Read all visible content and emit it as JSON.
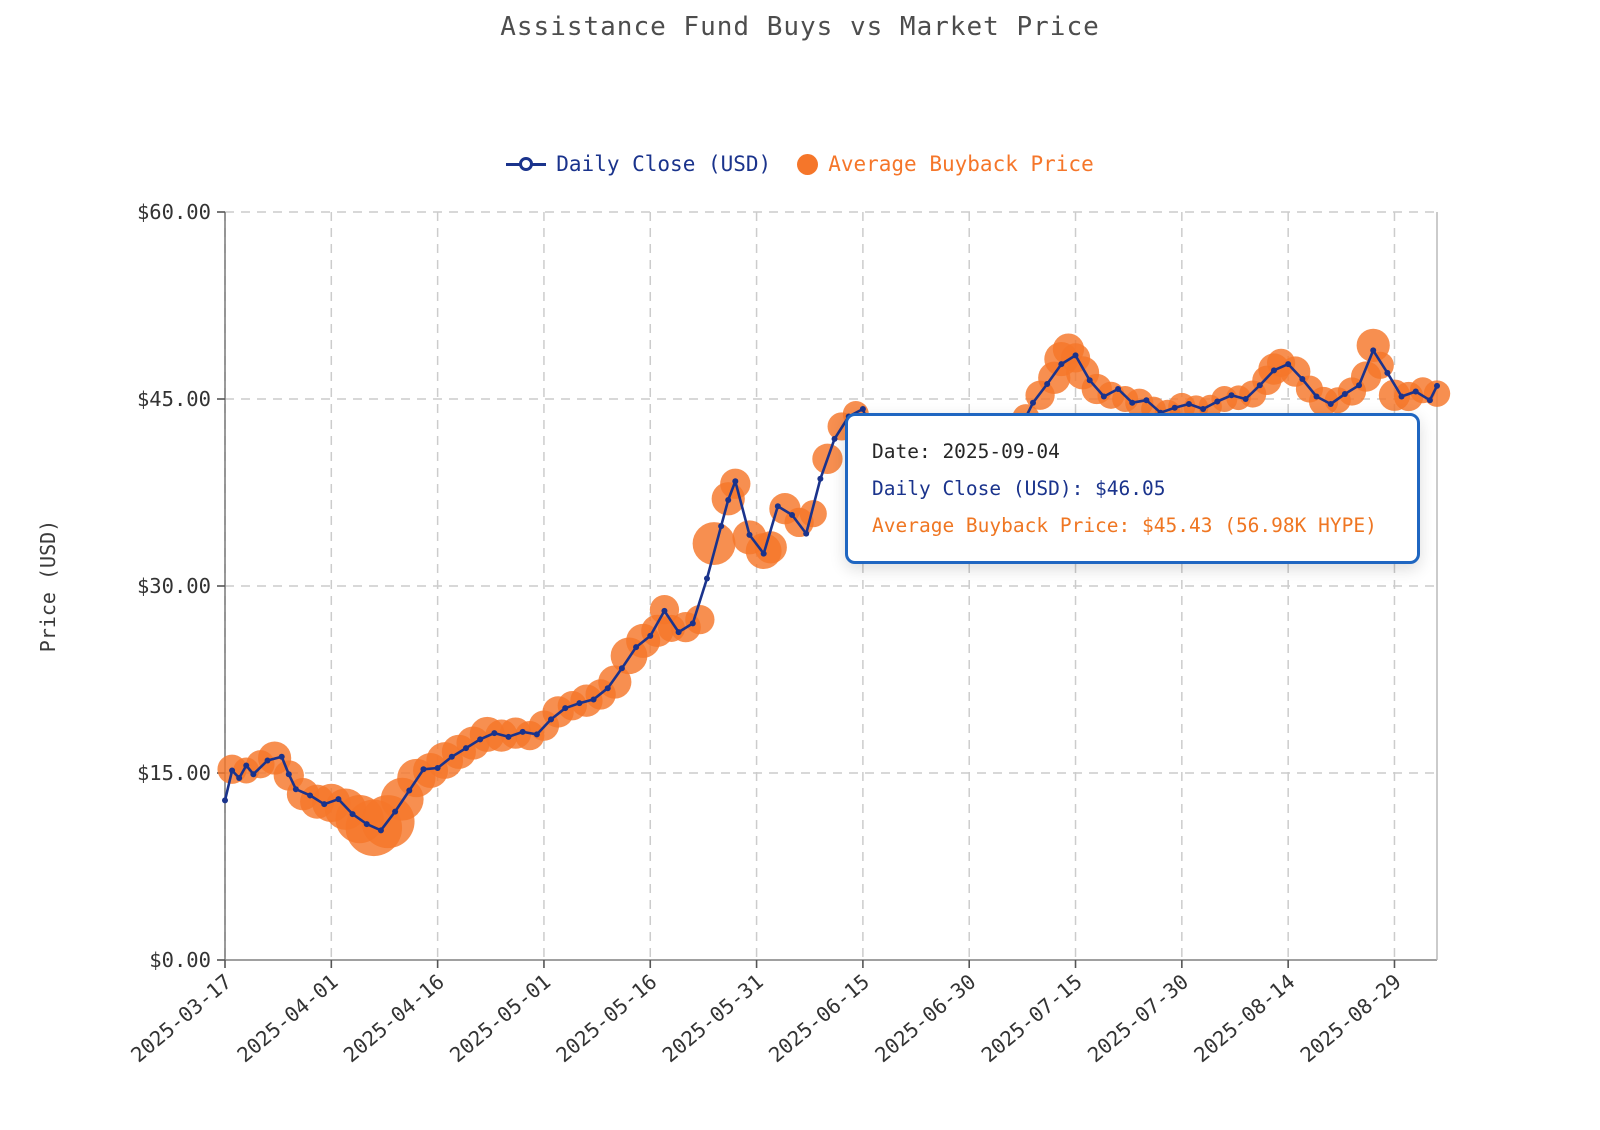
{
  "tooltip": {
    "lines": {
      "date": "Date: 2025-09-04",
      "daily_close": "Daily Close (USD): $46.05",
      "avg_buyback": "Average Buyback Price: $45.43 (56.98K HYPE)"
    },
    "border_color": "#1f66c1"
  },
  "colors": {
    "line": "#1a338c",
    "bubble": "#f5762a",
    "grid": "#cccccc",
    "axis": "#808080",
    "tick_text": "#333333",
    "title_text": "#4d4d4d",
    "background": "#ffffff"
  },
  "chart_data": {
    "type": "line",
    "title": "Assistance Fund Buys vs Market Price",
    "xlabel": "",
    "ylabel": "Price (USD)",
    "ylim": [
      0,
      60
    ],
    "grid": true,
    "legend_position": "top-center",
    "y_ticks": [
      {
        "v": 0,
        "label": "$0.00"
      },
      {
        "v": 15,
        "label": "$15.00"
      },
      {
        "v": 30,
        "label": "$30.00"
      },
      {
        "v": 45,
        "label": "$45.00"
      },
      {
        "v": 60,
        "label": "$60.00"
      }
    ],
    "x_ticks": [
      "2025-03-17",
      "2025-04-01",
      "2025-04-16",
      "2025-05-01",
      "2025-05-16",
      "2025-05-31",
      "2025-06-15",
      "2025-06-30",
      "2025-07-15",
      "2025-07-30",
      "2025-08-14",
      "2025-08-29"
    ],
    "x_domain": [
      "2025-03-17",
      "2025-09-04"
    ],
    "legend": [
      {
        "label": "Daily Close (USD)",
        "color": "#1a338c",
        "marker": "line-dot"
      },
      {
        "label": "Average Buyback Price",
        "color": "#f5762a",
        "marker": "bubble"
      }
    ],
    "series": [
      {
        "name": "Daily Close (USD)",
        "type": "line",
        "color": "#1a338c",
        "points": [
          [
            "2025-03-17",
            12.8
          ],
          [
            "2025-03-18",
            15.2
          ],
          [
            "2025-03-19",
            14.6
          ],
          [
            "2025-03-20",
            15.6
          ],
          [
            "2025-03-21",
            14.9
          ],
          [
            "2025-03-23",
            16.0
          ],
          [
            "2025-03-25",
            16.3
          ],
          [
            "2025-03-26",
            14.9
          ],
          [
            "2025-03-27",
            13.7
          ],
          [
            "2025-03-29",
            13.2
          ],
          [
            "2025-03-31",
            12.5
          ],
          [
            "2025-04-02",
            12.9
          ],
          [
            "2025-04-04",
            11.7
          ],
          [
            "2025-04-06",
            10.9
          ],
          [
            "2025-04-08",
            10.4
          ],
          [
            "2025-04-10",
            11.9
          ],
          [
            "2025-04-12",
            13.6
          ],
          [
            "2025-04-14",
            15.3
          ],
          [
            "2025-04-16",
            15.4
          ],
          [
            "2025-04-18",
            16.3
          ],
          [
            "2025-04-20",
            17.0
          ],
          [
            "2025-04-22",
            17.7
          ],
          [
            "2025-04-24",
            18.2
          ],
          [
            "2025-04-26",
            17.9
          ],
          [
            "2025-04-28",
            18.3
          ],
          [
            "2025-04-30",
            18.1
          ],
          [
            "2025-05-02",
            19.3
          ],
          [
            "2025-05-04",
            20.2
          ],
          [
            "2025-05-06",
            20.6
          ],
          [
            "2025-05-08",
            20.9
          ],
          [
            "2025-05-10",
            21.8
          ],
          [
            "2025-05-12",
            23.4
          ],
          [
            "2025-05-14",
            25.1
          ],
          [
            "2025-05-16",
            26.0
          ],
          [
            "2025-05-18",
            28.0
          ],
          [
            "2025-05-20",
            26.3
          ],
          [
            "2025-05-22",
            27.0
          ],
          [
            "2025-05-24",
            30.6
          ],
          [
            "2025-05-26",
            34.8
          ],
          [
            "2025-05-27",
            36.9
          ],
          [
            "2025-05-28",
            38.4
          ],
          [
            "2025-05-30",
            34.1
          ],
          [
            "2025-06-01",
            32.6
          ],
          [
            "2025-06-03",
            36.4
          ],
          [
            "2025-06-05",
            35.7
          ],
          [
            "2025-06-07",
            34.2
          ],
          [
            "2025-06-09",
            38.6
          ],
          [
            "2025-06-11",
            41.8
          ],
          [
            "2025-06-13",
            43.6
          ],
          [
            "2025-06-15",
            44.2
          ],
          [
            "2025-06-17",
            40.9
          ],
          [
            "2025-06-19",
            36.4
          ],
          [
            "2025-06-21",
            33.5
          ],
          [
            "2025-06-23",
            34.8
          ],
          [
            "2025-06-25",
            36.2
          ],
          [
            "2025-06-27",
            37.6
          ],
          [
            "2025-06-29",
            38.8
          ],
          [
            "2025-07-01",
            39.4
          ],
          [
            "2025-07-03",
            38.5
          ],
          [
            "2025-07-05",
            40.3
          ],
          [
            "2025-07-07",
            42.4
          ],
          [
            "2025-07-09",
            44.7
          ],
          [
            "2025-07-11",
            46.2
          ],
          [
            "2025-07-13",
            47.8
          ],
          [
            "2025-07-15",
            48.5
          ],
          [
            "2025-07-17",
            46.5
          ],
          [
            "2025-07-19",
            45.2
          ],
          [
            "2025-07-21",
            45.8
          ],
          [
            "2025-07-23",
            44.7
          ],
          [
            "2025-07-25",
            44.9
          ],
          [
            "2025-07-27",
            43.9
          ],
          [
            "2025-07-29",
            44.3
          ],
          [
            "2025-07-31",
            44.6
          ],
          [
            "2025-08-02",
            44.2
          ],
          [
            "2025-08-04",
            44.8
          ],
          [
            "2025-08-06",
            45.3
          ],
          [
            "2025-08-08",
            45.0
          ],
          [
            "2025-08-10",
            46.1
          ],
          [
            "2025-08-12",
            47.3
          ],
          [
            "2025-08-14",
            47.8
          ],
          [
            "2025-08-16",
            46.6
          ],
          [
            "2025-08-18",
            45.2
          ],
          [
            "2025-08-20",
            44.6
          ],
          [
            "2025-08-22",
            45.4
          ],
          [
            "2025-08-24",
            46.1
          ],
          [
            "2025-08-26",
            48.9
          ],
          [
            "2025-08-28",
            47.1
          ],
          [
            "2025-08-30",
            45.2
          ],
          [
            "2025-09-01",
            45.6
          ],
          [
            "2025-09-03",
            44.9
          ],
          [
            "2025-09-04",
            46.05
          ]
        ]
      },
      {
        "name": "Average Buyback Price",
        "type": "bubble",
        "color": "#f5762a",
        "size_note": "third value = thousands of HYPE bought; bubble radius proportional to sqrt(size)",
        "points": [
          [
            "2025-03-18",
            15.3,
            70
          ],
          [
            "2025-03-20",
            15.2,
            55
          ],
          [
            "2025-03-22",
            15.7,
            65
          ],
          [
            "2025-03-24",
            16.2,
            90
          ],
          [
            "2025-03-26",
            14.8,
            75
          ],
          [
            "2025-03-28",
            13.3,
            85
          ],
          [
            "2025-03-30",
            12.7,
            95
          ],
          [
            "2025-04-01",
            12.6,
            120
          ],
          [
            "2025-04-03",
            12.1,
            140
          ],
          [
            "2025-04-05",
            11.3,
            190
          ],
          [
            "2025-04-07",
            10.6,
            260
          ],
          [
            "2025-04-09",
            11.1,
            230
          ],
          [
            "2025-04-11",
            12.9,
            150
          ],
          [
            "2025-04-13",
            14.6,
            120
          ],
          [
            "2025-04-15",
            15.2,
            100
          ],
          [
            "2025-04-17",
            16.0,
            110
          ],
          [
            "2025-04-19",
            16.7,
            95
          ],
          [
            "2025-04-21",
            17.4,
            90
          ],
          [
            "2025-04-23",
            18.1,
            100
          ],
          [
            "2025-04-25",
            18.0,
            85
          ],
          [
            "2025-04-27",
            18.2,
            80
          ],
          [
            "2025-04-29",
            18.0,
            70
          ],
          [
            "2025-05-01",
            18.8,
            75
          ],
          [
            "2025-05-03",
            19.9,
            80
          ],
          [
            "2025-05-05",
            20.4,
            70
          ],
          [
            "2025-05-07",
            20.8,
            85
          ],
          [
            "2025-05-09",
            21.3,
            75
          ],
          [
            "2025-05-11",
            22.3,
            90
          ],
          [
            "2025-05-13",
            24.4,
            110
          ],
          [
            "2025-05-15",
            25.6,
            95
          ],
          [
            "2025-05-17",
            26.4,
            85
          ],
          [
            "2025-05-18",
            28.1,
            70
          ],
          [
            "2025-05-19",
            26.6,
            60
          ],
          [
            "2025-05-21",
            26.7,
            75
          ],
          [
            "2025-05-23",
            27.3,
            70
          ],
          [
            "2025-05-25",
            33.4,
            150
          ],
          [
            "2025-05-27",
            37.0,
            90
          ],
          [
            "2025-05-28",
            38.2,
            75
          ],
          [
            "2025-05-30",
            33.9,
            95
          ],
          [
            "2025-06-01",
            32.8,
            105
          ],
          [
            "2025-06-02",
            33.1,
            85
          ],
          [
            "2025-06-04",
            36.2,
            80
          ],
          [
            "2025-06-06",
            35.1,
            70
          ],
          [
            "2025-06-08",
            35.8,
            60
          ],
          [
            "2025-06-10",
            40.2,
            75
          ],
          [
            "2025-06-12",
            42.8,
            65
          ],
          [
            "2025-06-14",
            43.8,
            55
          ],
          [
            "2025-06-16",
            42.4,
            50
          ],
          [
            "2025-06-18",
            38.5,
            60
          ],
          [
            "2025-06-20",
            34.5,
            70
          ],
          [
            "2025-06-22",
            33.1,
            80
          ],
          [
            "2025-06-24",
            35.4,
            60
          ],
          [
            "2025-06-26",
            36.7,
            55
          ],
          [
            "2025-06-28",
            38.1,
            50
          ],
          [
            "2025-06-30",
            39.0,
            45
          ],
          [
            "2025-07-02",
            38.8,
            50
          ],
          [
            "2025-07-04",
            39.4,
            45
          ],
          [
            "2025-07-06",
            41.2,
            55
          ],
          [
            "2025-07-08",
            43.5,
            60
          ],
          [
            "2025-07-10",
            45.3,
            70
          ],
          [
            "2025-07-12",
            46.7,
            85
          ],
          [
            "2025-07-13",
            48.2,
            95
          ],
          [
            "2025-07-14",
            49.0,
            80
          ],
          [
            "2025-07-15",
            48.3,
            70
          ],
          [
            "2025-07-16",
            47.1,
            90
          ],
          [
            "2025-07-18",
            45.8,
            75
          ],
          [
            "2025-07-20",
            45.3,
            60
          ],
          [
            "2025-07-22",
            45.0,
            55
          ],
          [
            "2025-07-24",
            44.7,
            65
          ],
          [
            "2025-07-26",
            44.2,
            50
          ],
          [
            "2025-07-28",
            43.9,
            55
          ],
          [
            "2025-07-30",
            44.4,
            60
          ],
          [
            "2025-08-01",
            44.3,
            50
          ],
          [
            "2025-08-03",
            44.4,
            45
          ],
          [
            "2025-08-05",
            45.0,
            55
          ],
          [
            "2025-08-07",
            45.1,
            50
          ],
          [
            "2025-08-09",
            45.4,
            60
          ],
          [
            "2025-08-11",
            46.5,
            70
          ],
          [
            "2025-08-12",
            47.4,
            80
          ],
          [
            "2025-08-13",
            47.9,
            65
          ],
          [
            "2025-08-15",
            47.2,
            75
          ],
          [
            "2025-08-17",
            45.8,
            60
          ],
          [
            "2025-08-19",
            44.8,
            70
          ],
          [
            "2025-08-21",
            44.9,
            55
          ],
          [
            "2025-08-23",
            45.6,
            65
          ],
          [
            "2025-08-25",
            46.8,
            75
          ],
          [
            "2025-08-26",
            49.3,
            90
          ],
          [
            "2025-08-27",
            47.7,
            60
          ],
          [
            "2025-08-29",
            45.3,
            80
          ],
          [
            "2025-08-31",
            45.2,
            70
          ],
          [
            "2025-09-02",
            45.7,
            55
          ],
          [
            "2025-09-04",
            45.43,
            56.98
          ]
        ]
      }
    ]
  }
}
